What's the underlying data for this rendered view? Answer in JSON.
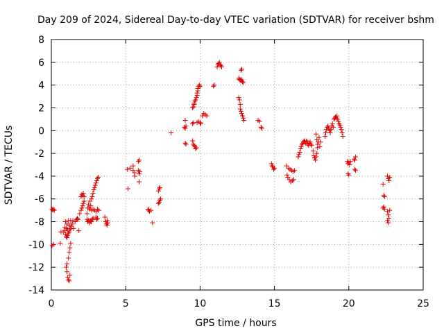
{
  "chart_data": {
    "type": "scatter",
    "title": "Day 209 of 2024, Sidereal Day-to-day VTEC variation (SDTVAR) for receiver bshm",
    "xlabel": "GPS time / hours",
    "ylabel": "SDTVAR / TECUs",
    "xlim": [
      0,
      25
    ],
    "ylim": [
      -14,
      8
    ],
    "xticks": [
      0,
      5,
      10,
      15,
      20,
      25
    ],
    "yticks": [
      -14,
      -12,
      -10,
      -8,
      -6,
      -4,
      -2,
      0,
      2,
      4,
      6,
      8
    ],
    "grid": true,
    "marker": "+",
    "colors": {
      "series": "#e00000",
      "grid": "#a0a0a0",
      "axis": "#000000"
    },
    "series": [
      {
        "name": "SDTVAR",
        "points": [
          [
            0.05,
            -6.9
          ],
          [
            0.1,
            -7.0
          ],
          [
            0.15,
            -6.9
          ],
          [
            0.2,
            -7.0
          ],
          [
            0.05,
            -10.1
          ],
          [
            0.15,
            -10.0
          ],
          [
            0.6,
            -9.9
          ],
          [
            0.65,
            -8.9
          ],
          [
            0.8,
            -8.9
          ],
          [
            0.9,
            -8.5
          ],
          [
            0.9,
            -8.8
          ],
          [
            0.95,
            -9.1
          ],
          [
            0.95,
            -8.0
          ],
          [
            1.0,
            -9.3
          ],
          [
            1.0,
            -8.6
          ],
          [
            1.05,
            -9.4
          ],
          [
            1.05,
            -8.2
          ],
          [
            1.1,
            -9.2
          ],
          [
            1.1,
            -8.7
          ],
          [
            1.15,
            -9.0
          ],
          [
            1.15,
            -7.9
          ],
          [
            1.2,
            -8.9
          ],
          [
            1.2,
            -8.3
          ],
          [
            1.25,
            -8.7
          ],
          [
            1.3,
            -8.6
          ],
          [
            1.35,
            -8.4
          ],
          [
            1.3,
            -7.9
          ],
          [
            1.4,
            -8.2
          ],
          [
            1.45,
            -7.9
          ],
          [
            1.0,
            -12.0
          ],
          [
            1.05,
            -12.4
          ],
          [
            1.05,
            -11.7
          ],
          [
            1.1,
            -12.9
          ],
          [
            1.15,
            -11.2
          ],
          [
            1.15,
            -13.1
          ],
          [
            1.2,
            -10.7
          ],
          [
            1.2,
            -13.2
          ],
          [
            1.25,
            -10.3
          ],
          [
            1.25,
            -12.7
          ],
          [
            1.3,
            -9.9
          ],
          [
            1.5,
            -8.6
          ],
          [
            1.6,
            -8.0
          ],
          [
            1.7,
            -7.8
          ],
          [
            1.75,
            -7.7
          ],
          [
            1.8,
            -7.8
          ],
          [
            1.85,
            -8.8
          ],
          [
            2.0,
            -5.8
          ],
          [
            2.05,
            -5.6
          ],
          [
            2.1,
            -5.7
          ],
          [
            2.15,
            -5.5
          ],
          [
            2.2,
            -5.8
          ],
          [
            1.9,
            -7.3
          ],
          [
            2.0,
            -7.0
          ],
          [
            2.05,
            -6.8
          ],
          [
            2.1,
            -6.6
          ],
          [
            2.15,
            -6.4
          ],
          [
            2.2,
            -6.2
          ],
          [
            2.4,
            -7.8
          ],
          [
            2.45,
            -8.0
          ],
          [
            2.5,
            -7.9
          ],
          [
            2.55,
            -8.1
          ],
          [
            2.6,
            -7.9
          ],
          [
            2.65,
            -8.0
          ],
          [
            2.7,
            -8.0
          ],
          [
            2.75,
            -7.8
          ],
          [
            2.8,
            -7.7
          ],
          [
            2.4,
            -7.3
          ],
          [
            2.45,
            -6.8
          ],
          [
            2.5,
            -6.5
          ],
          [
            2.55,
            -6.8
          ],
          [
            2.6,
            -6.2
          ],
          [
            2.65,
            -6.6
          ],
          [
            2.7,
            -6.0
          ],
          [
            2.75,
            -5.8
          ],
          [
            2.8,
            -5.5
          ],
          [
            2.85,
            -5.2
          ],
          [
            2.9,
            -5.0
          ],
          [
            2.95,
            -4.8
          ],
          [
            3.0,
            -4.6
          ],
          [
            3.05,
            -4.4
          ],
          [
            3.1,
            -4.2
          ],
          [
            3.15,
            -4.1
          ],
          [
            2.6,
            -6.9
          ],
          [
            2.7,
            -7.0
          ],
          [
            2.8,
            -6.9
          ],
          [
            2.9,
            -7.0
          ],
          [
            3.0,
            -7.1
          ],
          [
            3.1,
            -6.9
          ],
          [
            3.2,
            -7.0
          ],
          [
            3.0,
            -7.6
          ],
          [
            3.05,
            -7.8
          ],
          [
            3.1,
            -7.7
          ],
          [
            3.6,
            -7.6
          ],
          [
            3.65,
            -8.0
          ],
          [
            3.7,
            -8.2
          ],
          [
            3.75,
            -8.3
          ],
          [
            3.8,
            -8.1
          ],
          [
            3.75,
            -7.9
          ],
          [
            5.1,
            -3.4
          ],
          [
            5.15,
            -5.1
          ],
          [
            5.3,
            -3.3
          ],
          [
            5.5,
            -3.5
          ],
          [
            5.6,
            -3.7
          ],
          [
            5.5,
            -3.1
          ],
          [
            5.6,
            -4.0
          ],
          [
            5.85,
            -2.7
          ],
          [
            5.9,
            -2.6
          ],
          [
            5.85,
            -3.5
          ],
          [
            5.9,
            -3.8
          ],
          [
            5.9,
            -4.5
          ],
          [
            5.95,
            -3.6
          ],
          [
            6.5,
            -6.9
          ],
          [
            6.55,
            -7.0
          ],
          [
            6.6,
            -7.1
          ],
          [
            6.7,
            -7.0
          ],
          [
            6.8,
            -8.1
          ],
          [
            7.2,
            -5.3
          ],
          [
            7.25,
            -5.1
          ],
          [
            7.3,
            -5.0
          ],
          [
            7.25,
            -6.3
          ],
          [
            7.3,
            -6.1
          ],
          [
            7.35,
            -6.0
          ],
          [
            7.2,
            -6.4
          ],
          [
            8.05,
            -0.2
          ],
          [
            8.95,
            0.3
          ],
          [
            9.0,
            0.2
          ],
          [
            9.0,
            0.9
          ],
          [
            9.05,
            0.4
          ],
          [
            9.0,
            -1.1
          ],
          [
            9.05,
            -1.2
          ],
          [
            9.5,
            0.6
          ],
          [
            9.5,
            -0.9
          ],
          [
            9.55,
            -1.2
          ],
          [
            9.6,
            -1.3
          ],
          [
            9.65,
            -1.4
          ],
          [
            9.7,
            -1.6
          ],
          [
            9.75,
            -1.5
          ],
          [
            9.55,
            0.7
          ],
          [
            9.5,
            2.0
          ],
          [
            9.55,
            2.1
          ],
          [
            9.6,
            2.3
          ],
          [
            9.6,
            2.4
          ],
          [
            9.65,
            2.6
          ],
          [
            9.7,
            2.7
          ],
          [
            9.75,
            2.9
          ],
          [
            9.8,
            3.1
          ],
          [
            9.8,
            3.3
          ],
          [
            9.85,
            3.5
          ],
          [
            9.85,
            3.7
          ],
          [
            9.9,
            3.9
          ],
          [
            9.95,
            4.0
          ],
          [
            10.0,
            3.9
          ],
          [
            9.8,
            0.7
          ],
          [
            9.9,
            0.8
          ],
          [
            10.0,
            0.7
          ],
          [
            10.05,
            0.6
          ],
          [
            10.15,
            1.3
          ],
          [
            10.25,
            1.5
          ],
          [
            10.35,
            1.4
          ],
          [
            10.45,
            1.3
          ],
          [
            10.9,
            3.9
          ],
          [
            10.95,
            4.0
          ],
          [
            11.15,
            5.6
          ],
          [
            11.2,
            5.8
          ],
          [
            11.25,
            5.9
          ],
          [
            11.3,
            6.0
          ],
          [
            11.35,
            5.8
          ],
          [
            11.4,
            5.7
          ],
          [
            11.45,
            5.6
          ],
          [
            12.6,
            2.9
          ],
          [
            12.65,
            2.7
          ],
          [
            12.7,
            2.3
          ],
          [
            12.7,
            1.9
          ],
          [
            12.75,
            1.7
          ],
          [
            12.8,
            1.5
          ],
          [
            12.85,
            1.3
          ],
          [
            12.9,
            1.1
          ],
          [
            12.95,
            0.9
          ],
          [
            12.6,
            4.6
          ],
          [
            12.65,
            4.5
          ],
          [
            12.7,
            4.4
          ],
          [
            12.75,
            4.5
          ],
          [
            12.8,
            4.4
          ],
          [
            12.85,
            4.3
          ],
          [
            12.9,
            4.2
          ],
          [
            12.75,
            5.3
          ],
          [
            12.8,
            5.4
          ],
          [
            13.9,
            0.9
          ],
          [
            14.0,
            0.8
          ],
          [
            14.1,
            0.3
          ],
          [
            14.15,
            0.2
          ],
          [
            14.8,
            -2.9
          ],
          [
            14.85,
            -3.1
          ],
          [
            14.9,
            -3.2
          ],
          [
            14.95,
            -3.4
          ],
          [
            15.0,
            -3.3
          ],
          [
            15.8,
            -3.1
          ],
          [
            15.85,
            -3.9
          ],
          [
            15.9,
            -4.1
          ],
          [
            15.95,
            -3.3
          ],
          [
            16.0,
            -4.3
          ],
          [
            16.05,
            -3.4
          ],
          [
            16.1,
            -4.5
          ],
          [
            16.15,
            -3.5
          ],
          [
            16.2,
            -4.4
          ],
          [
            16.25,
            -3.6
          ],
          [
            16.3,
            -4.3
          ],
          [
            16.35,
            -3.5
          ],
          [
            16.6,
            -2.3
          ],
          [
            16.65,
            -2.1
          ],
          [
            16.7,
            -1.9
          ],
          [
            16.75,
            -1.6
          ],
          [
            16.8,
            -1.4
          ],
          [
            16.85,
            -1.2
          ],
          [
            16.9,
            -1.1
          ],
          [
            16.95,
            -1.0
          ],
          [
            17.0,
            -0.9
          ],
          [
            17.05,
            -1.0
          ],
          [
            17.1,
            -1.1
          ],
          [
            17.15,
            -0.9
          ],
          [
            17.2,
            -1.0
          ],
          [
            17.25,
            -1.2
          ],
          [
            17.3,
            -1.3
          ],
          [
            17.35,
            -1.1
          ],
          [
            17.4,
            -1.0
          ],
          [
            17.45,
            -1.2
          ],
          [
            17.5,
            -1.3
          ],
          [
            17.6,
            -1.8
          ],
          [
            17.65,
            -2.2
          ],
          [
            17.7,
            -2.4
          ],
          [
            17.75,
            -2.6
          ],
          [
            17.8,
            -2.3
          ],
          [
            17.85,
            -2.0
          ],
          [
            17.9,
            -1.5
          ],
          [
            17.95,
            -1.0
          ],
          [
            18.0,
            -0.6
          ],
          [
            17.8,
            -0.3
          ],
          [
            17.85,
            -0.8
          ],
          [
            17.9,
            -1.2
          ],
          [
            18.05,
            -1.4
          ],
          [
            18.1,
            -1.0
          ],
          [
            18.4,
            -0.5
          ],
          [
            18.45,
            -0.2
          ],
          [
            18.5,
            0.1
          ],
          [
            18.55,
            0.3
          ],
          [
            18.6,
            0.4
          ],
          [
            18.65,
            0.2
          ],
          [
            18.7,
            0.0
          ],
          [
            18.75,
            -0.2
          ],
          [
            18.8,
            0.1
          ],
          [
            18.85,
            0.4
          ],
          [
            18.9,
            0.6
          ],
          [
            18.95,
            0.3
          ],
          [
            19.0,
            1.0
          ],
          [
            19.05,
            1.1
          ],
          [
            19.1,
            1.2
          ],
          [
            19.15,
            1.1
          ],
          [
            19.2,
            1.3
          ],
          [
            19.25,
            1.0
          ],
          [
            19.3,
            0.8
          ],
          [
            19.35,
            0.6
          ],
          [
            19.4,
            0.5
          ],
          [
            19.45,
            0.3
          ],
          [
            19.5,
            0.1
          ],
          [
            19.55,
            -0.2
          ],
          [
            19.6,
            -0.5
          ],
          [
            19.9,
            -2.7
          ],
          [
            19.95,
            -2.9
          ],
          [
            20.0,
            -2.8
          ],
          [
            20.05,
            -3.0
          ],
          [
            20.1,
            -2.7
          ],
          [
            19.95,
            -3.8
          ],
          [
            20.0,
            -3.9
          ],
          [
            20.35,
            -2.5
          ],
          [
            20.4,
            -2.6
          ],
          [
            20.45,
            -2.3
          ],
          [
            20.4,
            -3.4
          ],
          [
            20.45,
            -3.5
          ],
          [
            22.3,
            -4.7
          ],
          [
            22.35,
            -5.7
          ],
          [
            22.4,
            -5.8
          ],
          [
            22.3,
            -6.8
          ],
          [
            22.35,
            -6.7
          ],
          [
            22.4,
            -6.9
          ],
          [
            22.6,
            -4.0
          ],
          [
            22.65,
            -4.2
          ],
          [
            22.7,
            -4.4
          ],
          [
            22.75,
            -4.1
          ],
          [
            22.6,
            -7.1
          ],
          [
            22.65,
            -7.4
          ],
          [
            22.7,
            -7.7
          ],
          [
            22.75,
            -7.0
          ],
          [
            22.6,
            -7.9
          ],
          [
            22.65,
            -8.1
          ]
        ]
      }
    ]
  }
}
